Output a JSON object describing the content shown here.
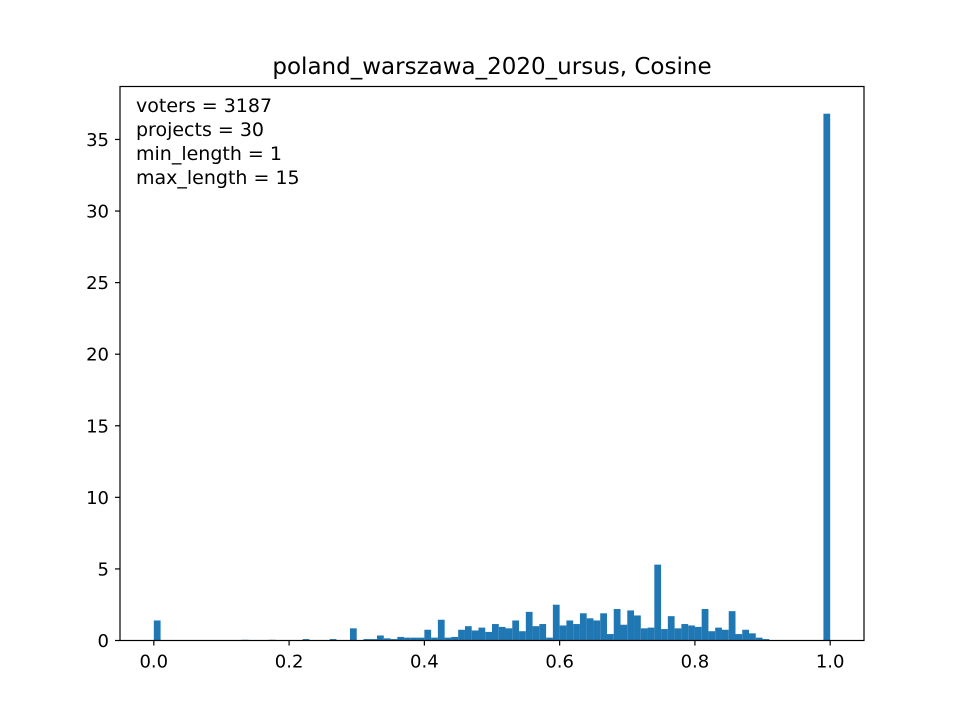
{
  "chart_data": {
    "type": "bar",
    "title": "poland_warszawa_2020_ursus, Cosine",
    "xlabel": "",
    "ylabel": "",
    "xlim": [
      -0.05,
      1.05
    ],
    "ylim": [
      0,
      38.7
    ],
    "xticks": [
      0.0,
      0.2,
      0.4,
      0.6,
      0.8,
      1.0
    ],
    "xtick_labels": [
      "0.0",
      "0.2",
      "0.4",
      "0.6",
      "0.8",
      "1.0"
    ],
    "yticks": [
      0,
      5,
      10,
      15,
      20,
      25,
      30,
      35
    ],
    "ytick_labels": [
      "0",
      "5",
      "10",
      "15",
      "20",
      "25",
      "30",
      "35"
    ],
    "grid": false,
    "color": "#1f77b4",
    "bin_width": 0.01,
    "bin_starts": [
      0.0,
      0.13,
      0.17,
      0.22,
      0.26,
      0.29,
      0.31,
      0.32,
      0.33,
      0.34,
      0.35,
      0.36,
      0.37,
      0.38,
      0.39,
      0.4,
      0.41,
      0.42,
      0.43,
      0.44,
      0.45,
      0.46,
      0.47,
      0.48,
      0.49,
      0.5,
      0.51,
      0.52,
      0.53,
      0.54,
      0.55,
      0.56,
      0.57,
      0.58,
      0.59,
      0.6,
      0.61,
      0.62,
      0.63,
      0.64,
      0.65,
      0.66,
      0.67,
      0.68,
      0.69,
      0.7,
      0.71,
      0.72,
      0.73,
      0.74,
      0.75,
      0.76,
      0.77,
      0.78,
      0.79,
      0.8,
      0.81,
      0.82,
      0.83,
      0.84,
      0.85,
      0.86,
      0.87,
      0.88,
      0.89,
      0.9,
      0.99
    ],
    "values": [
      1.4,
      0.05,
      0.05,
      0.1,
      0.1,
      0.85,
      0.1,
      0.1,
      0.35,
      0.15,
      0.1,
      0.25,
      0.2,
      0.2,
      0.2,
      0.75,
      0.2,
      1.45,
      0.2,
      0.25,
      0.75,
      1.0,
      0.7,
      0.9,
      0.6,
      1.15,
      0.95,
      0.85,
      1.4,
      0.65,
      2.0,
      1.0,
      1.15,
      0.2,
      2.5,
      1.05,
      1.4,
      1.15,
      1.9,
      1.55,
      1.4,
      1.9,
      0.45,
      2.2,
      1.1,
      2.1,
      1.75,
      0.85,
      0.9,
      5.3,
      0.8,
      1.7,
      0.85,
      1.15,
      1.05,
      0.95,
      2.2,
      0.65,
      0.9,
      0.75,
      2.05,
      0.45,
      0.75,
      0.5,
      0.2,
      0.1,
      36.8
    ],
    "annotations": [
      "voters = 3187",
      "projects = 30",
      "min_length = 1",
      "max_length = 15"
    ]
  }
}
